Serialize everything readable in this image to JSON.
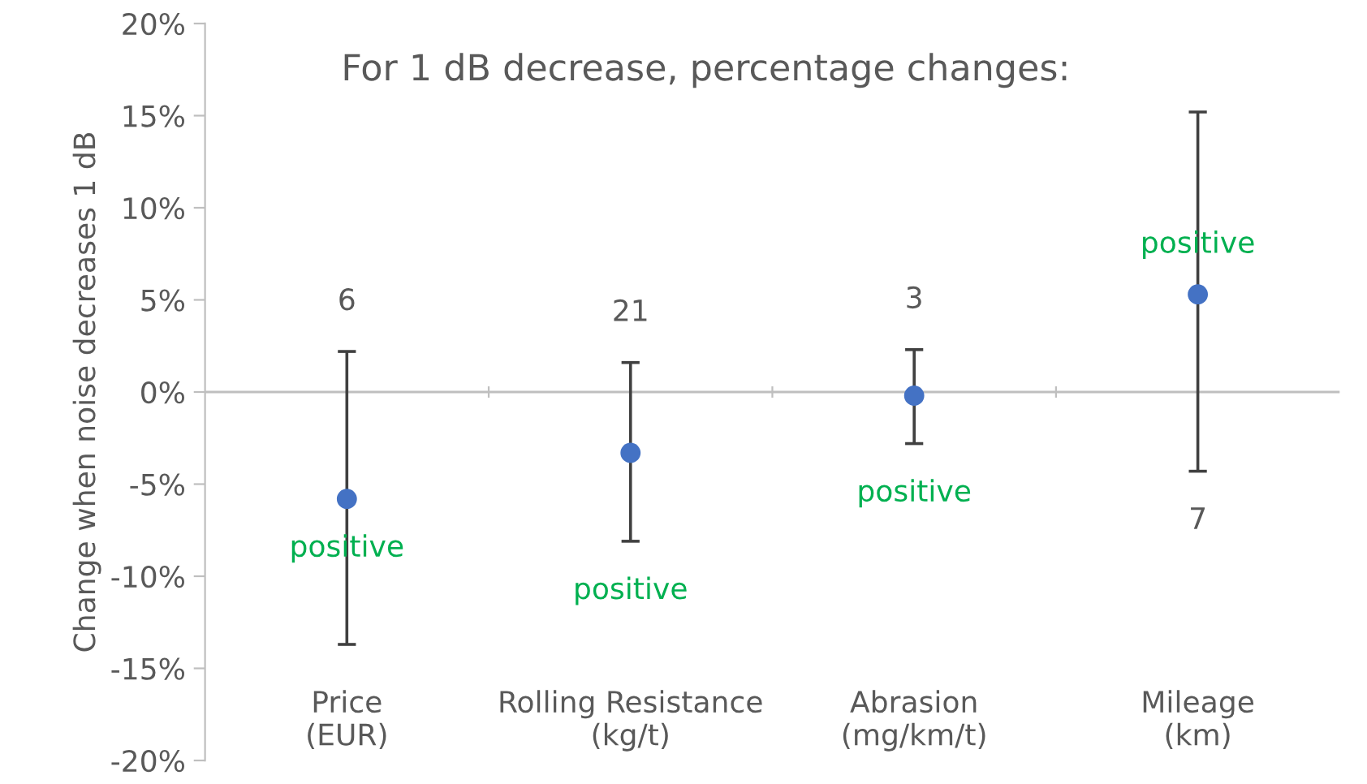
{
  "chart_data": {
    "type": "scatter",
    "title": "For 1 dB decrease, percentage changes:",
    "ylabel": "Change when noise decreases 1 dB",
    "categories": [
      "Price\n(EUR)",
      "Rolling Resistance\n(kg/t)",
      "Abrasion\n(mg/km/t)",
      "Mileage\n(km)"
    ],
    "values": [
      -5.8,
      -3.3,
      -0.2,
      5.3
    ],
    "color": "#4472c4",
    "errors": [
      [
        -13.7,
        2.2
      ],
      [
        -8.1,
        1.6
      ],
      [
        -2.8,
        2.3
      ],
      [
        -4.3,
        15.2
      ]
    ],
    "ref_lines": [
      {
        "axis": "y",
        "value": 0,
        "color": "#bfbfbf"
      }
    ],
    "ylim": [
      -20,
      20
    ],
    "yticks": [
      {
        "value": -20,
        "label": "-20%"
      },
      {
        "value": -15,
        "label": "-15%"
      },
      {
        "value": -10,
        "label": "-10%"
      },
      {
        "value": -5,
        "label": "-5%"
      },
      {
        "value": 0,
        "label": "0%"
      },
      {
        "value": 5,
        "label": "5%"
      },
      {
        "value": 10,
        "label": "10%"
      },
      {
        "value": 15,
        "label": "15%"
      },
      {
        "value": 20,
        "label": "20%"
      }
    ],
    "marker": "circle",
    "annotations": [
      "6",
      "positive",
      "21",
      "positive",
      "3",
      "positive",
      "positive",
      "7"
    ]
  }
}
